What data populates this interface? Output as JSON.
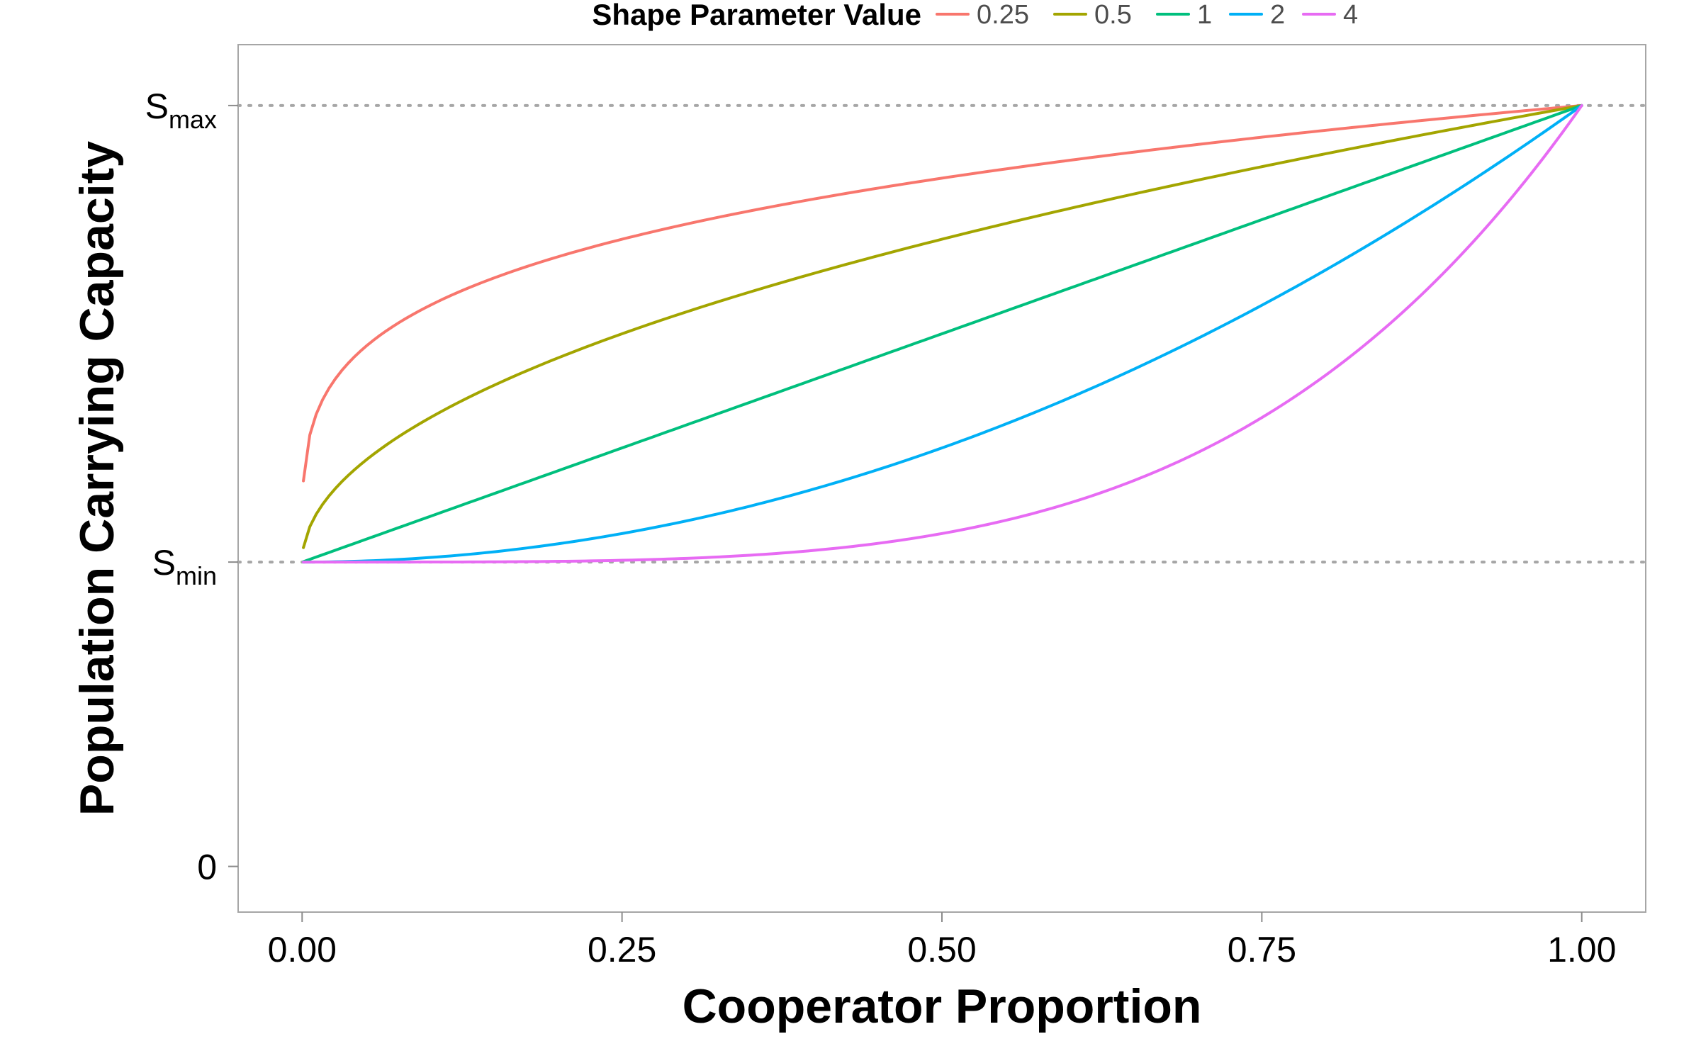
{
  "chart_data": {
    "type": "line",
    "title": "",
    "xlabel": "Cooperator Proportion",
    "ylabel": "Population Carrying Capacity",
    "xlim": [
      -0.05,
      1.05
    ],
    "ylim": [
      -0.06,
      1.08
    ],
    "x_ticks": [
      {
        "value": 0,
        "label": "0.00"
      },
      {
        "value": 0.25,
        "label": "0.25"
      },
      {
        "value": 0.5,
        "label": "0.50"
      },
      {
        "value": 0.75,
        "label": "0.75"
      },
      {
        "value": 1,
        "label": "1.00"
      }
    ],
    "y_ticks": [
      {
        "value": 0,
        "base": "0",
        "sub": ""
      },
      {
        "value": 0.4,
        "base": "S",
        "sub": "min"
      },
      {
        "value": 1,
        "base": "S",
        "sub": "max"
      }
    ],
    "reference_lines": [
      {
        "name": "S_min",
        "y": 0.4
      },
      {
        "name": "S_max",
        "y": 1
      }
    ],
    "model": {
      "s_min": 0.4,
      "s_max": 1,
      "formula": "y = s_min + (s_max - s_min) * x^shape",
      "x_start": 0.001,
      "x_end": 1,
      "points": 200
    },
    "legend": {
      "title": "Shape Parameter Value",
      "position": "top"
    },
    "grid": false,
    "series": [
      {
        "name": "0.25",
        "shape": 0.25,
        "color": "#F8766D"
      },
      {
        "name": "0.5",
        "shape": 0.5,
        "color": "#A3A500"
      },
      {
        "name": "1",
        "shape": 1,
        "color": "#00BF7D"
      },
      {
        "name": "2",
        "shape": 2,
        "color": "#00B0F6"
      },
      {
        "name": "4",
        "shape": 4,
        "color": "#E76BF3"
      }
    ]
  }
}
